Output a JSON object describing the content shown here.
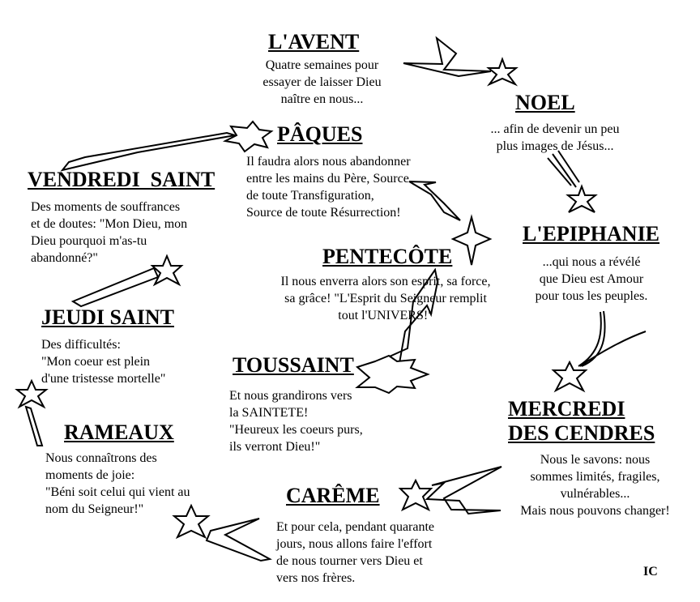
{
  "stations": [
    {
      "id": "avent",
      "title": "L'AVENT",
      "text": "Quatre semaines pour\nessayer de laisser Dieu\nnaître en nous..."
    },
    {
      "id": "noel",
      "title": "NOEL",
      "text": "... afin de devenir un peu\nplus images de Jésus..."
    },
    {
      "id": "epiphanie",
      "title": "L'EPIPHANIE",
      "text": "...qui nous a révélé\nque Dieu est Amour\npour tous les peuples."
    },
    {
      "id": "cendres",
      "title": "MERCREDI\nDES CENDRES",
      "text": "Nous le savons: nous\nsommes limités, fragiles,\nvulnérables...\nMais nous pouvons changer!"
    },
    {
      "id": "careme",
      "title": "CARÊME",
      "text": "Et pour cela, pendant quarante\njours, nous allons faire l'effort\nde nous tourner vers Dieu et\nvers nos frères."
    },
    {
      "id": "rameaux",
      "title": "RAMEAUX",
      "text": "Nous connaîtrons des\nmoments de joie:\n\"Béni soit celui qui vient au\nnom du Seigneur!\""
    },
    {
      "id": "jeudi",
      "title": "JEUDI SAINT",
      "text": "Des difficultés:\n\"Mon coeur est plein\nd'une tristesse mortelle\""
    },
    {
      "id": "vendredi",
      "title": "VENDREDI  SAINT",
      "text": "Des moments de souffrances\net de doutes: \"Mon Dieu, mon\nDieu pourquoi m'as-tu\nabandonné?\""
    },
    {
      "id": "paques",
      "title": "PÂQUES",
      "text": "Il faudra alors nous abandonner\nentre les mains du Père, Source\nde toute Transfiguration,\nSource de toute Résurrection!"
    },
    {
      "id": "pentecote",
      "title": "PENTECÔTE",
      "text": "Il nous enverra alors son esprit, sa force,\nsa grâce! \"L'Esprit du Seigneur remplit\ntout l'UNIVERS!\""
    },
    {
      "id": "toussaint",
      "title": "TOUSSAINT",
      "text": "Et nous grandirons vers\nla SAINTETE!\n\"Heureux les coeurs purs,\nils verront Dieu!\""
    }
  ],
  "signature": "IC",
  "colors": {
    "ink": "#000000",
    "background": "#ffffff"
  }
}
